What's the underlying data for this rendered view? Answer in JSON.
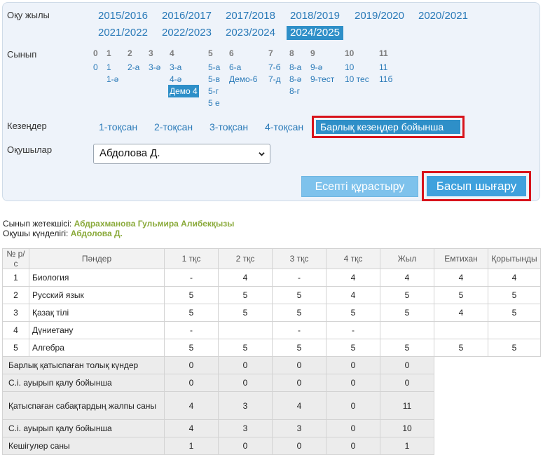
{
  "filters": {
    "year_label": "Оқу жылы",
    "years": [
      "2015/2016",
      "2016/2017",
      "2017/2018",
      "2018/2019",
      "2019/2020",
      "2020/2021",
      "2021/2022",
      "2022/2023",
      "2023/2024",
      "2024/2025"
    ],
    "active_year": "2024/2025",
    "class_label": "Сынып",
    "grade_heads": [
      "0",
      "1",
      "2",
      "3",
      "4",
      "5",
      "6",
      "7",
      "8",
      "9",
      "10",
      "11"
    ],
    "grade_links": {
      "g0": [
        "0"
      ],
      "g1": [
        "1",
        "1-ә"
      ],
      "g2": [
        "2-а"
      ],
      "g3": [
        "3-ә"
      ],
      "g4": [
        "3-а",
        "4-ә",
        "Демо 4"
      ],
      "g5": [
        "5-а",
        "5-в",
        "5-г",
        "5 е"
      ],
      "g6": [
        "6-а",
        "Демо-6"
      ],
      "g7": [
        "7-б",
        "7-д"
      ],
      "g8": [
        "8-а",
        "8-ә",
        "8-г"
      ],
      "g9": [
        "9-ә",
        "9-тест"
      ],
      "g10": [
        "10",
        "10 тес"
      ],
      "g11": [
        "11",
        "11б"
      ]
    },
    "active_class": "Демо 4",
    "period_label": "Кезеңдер",
    "periods": [
      "1-тоқсан",
      "2-тоқсан",
      "3-тоқсан",
      "4-тоқсан"
    ],
    "active_period": "Барлық кезеңдер бойынша",
    "student_label": "Оқушылар",
    "student_value": "Абдолова Д.",
    "build_button": "Есепті құрастыру",
    "print_button": "Басып шығару"
  },
  "info": {
    "teacher_label": "Сынып жетекшісі:",
    "teacher_name": "Абдрахманова Гульмира Алибекқызы",
    "diary_label": "Оқушы күнделігі:",
    "diary_name": "Абдолова Д."
  },
  "table": {
    "headers": [
      "№ р/с",
      "Пәндер",
      "1 тқс",
      "2 тқс",
      "3 тқс",
      "4 тқс",
      "Жыл",
      "Емтихан",
      "Қорытынды"
    ],
    "rows": [
      {
        "n": "1",
        "subject": "Биология",
        "v": [
          "-",
          "4",
          "-",
          "4",
          "4",
          "4",
          "4"
        ]
      },
      {
        "n": "2",
        "subject": "Русский язык",
        "v": [
          "5",
          "5",
          "5",
          "4",
          "5",
          "5",
          "5"
        ]
      },
      {
        "n": "3",
        "subject": "Қазақ тілі",
        "v": [
          "5",
          "5",
          "5",
          "5",
          "5",
          "4",
          "5"
        ]
      },
      {
        "n": "4",
        "subject": "Дүниетану",
        "v": [
          "-",
          "",
          "-",
          "-",
          "",
          "",
          ""
        ]
      },
      {
        "n": "5",
        "subject": "Алгебра",
        "v": [
          "5",
          "5",
          "5",
          "5",
          "5",
          "5",
          "5"
        ]
      }
    ],
    "summary": [
      {
        "label": "Барлық қатыспаған толық күндер",
        "v": [
          "0",
          "0",
          "0",
          "0",
          "0"
        ]
      },
      {
        "label": "С.і. ауырып қалу бойынша",
        "v": [
          "0",
          "0",
          "0",
          "0",
          "0"
        ]
      },
      {
        "label": "Қатыспаған сабақтардың жалпы саны",
        "v": [
          "4",
          "3",
          "4",
          "0",
          "11"
        ]
      },
      {
        "label": "С.і. ауырып қалу бойынша",
        "v": [
          "4",
          "3",
          "3",
          "0",
          "10"
        ]
      },
      {
        "label": "Кешігулер саны",
        "v": [
          "1",
          "0",
          "0",
          "0",
          "1"
        ]
      }
    ]
  }
}
